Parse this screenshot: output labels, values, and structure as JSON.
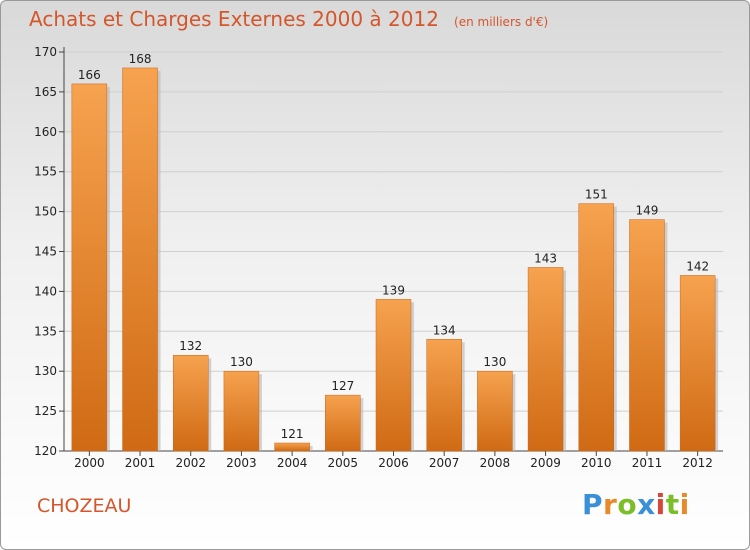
{
  "chart_data": {
    "type": "bar",
    "title": "Achats et Charges Externes 2000 à 2012",
    "subtitle": "(en milliers d'€)",
    "categories": [
      "2000",
      "2001",
      "2002",
      "2003",
      "2004",
      "2005",
      "2006",
      "2007",
      "2008",
      "2009",
      "2010",
      "2011",
      "2012"
    ],
    "values": [
      166,
      168,
      132,
      130,
      121,
      127,
      139,
      134,
      130,
      143,
      151,
      149,
      142
    ],
    "ylim": [
      120,
      170
    ],
    "yticks": [
      120,
      125,
      130,
      135,
      140,
      145,
      150,
      155,
      160,
      165,
      170
    ],
    "grid": true,
    "colors": {
      "bar_light": "#f6a24f",
      "bar_dark": "#d06a14",
      "title": "#d4562a"
    }
  },
  "commune": "CHOZEAU",
  "logo": {
    "letters": [
      "P",
      "r",
      "o",
      "x",
      "i",
      "t",
      "i"
    ],
    "colors": [
      "#3b8fd6",
      "#e8892a",
      "#7cbd2a",
      "#3b8fd6",
      "#d94638",
      "#7cbd2a",
      "#e8892a"
    ]
  }
}
